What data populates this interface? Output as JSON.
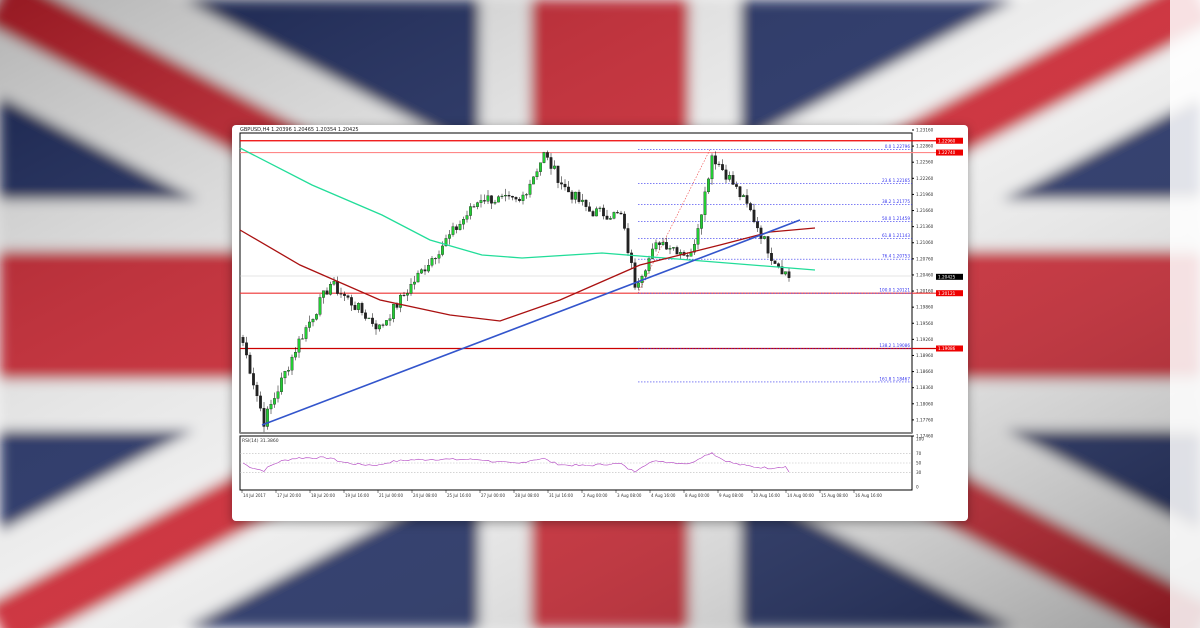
{
  "colors": {
    "flag_red": "#c8202f",
    "flag_blue": "#1e2a5e",
    "bull": "#22cc33",
    "bear": "#222222",
    "ma_fast": "#aa1111",
    "ma_slow": "#22dd99",
    "trend": "#3355cc",
    "rsi": "#b040c0",
    "fib": "#3333ee",
    "level": "#ee1111"
  },
  "chart_data": {
    "type": "candlestick",
    "symbol_header": "GBPUSD,H4  1.20396 1.20465 1.20354 1.20425",
    "price_axis": {
      "min": 1.1746,
      "max": 1.2316,
      "ticks": [
        "1.23160",
        "1.22860",
        "1.22560",
        "1.22260",
        "1.21960",
        "1.21660",
        "1.21360",
        "1.21060",
        "1.20760",
        "1.20460",
        "1.20160",
        "1.19860",
        "1.19560",
        "1.19260",
        "1.18960",
        "1.18660",
        "1.18360",
        "1.18060",
        "1.17760",
        "1.17460"
      ]
    },
    "current_price": "1.20425",
    "close_keypoints": [
      [
        0,
        1.192
      ],
      [
        6,
        1.1773
      ],
      [
        16,
        1.1923
      ],
      [
        25,
        1.203
      ],
      [
        39,
        1.1947
      ],
      [
        45,
        1.2
      ],
      [
        53,
        1.207
      ],
      [
        68,
        1.219
      ],
      [
        79,
        1.2181
      ],
      [
        86,
        1.227
      ],
      [
        92,
        1.2208
      ],
      [
        99,
        1.2165
      ],
      [
        108,
        1.2156
      ],
      [
        112,
        1.203
      ],
      [
        119,
        1.211
      ],
      [
        128,
        1.2082
      ],
      [
        132,
        1.2198
      ],
      [
        134,
        1.227
      ],
      [
        139,
        1.2226
      ],
      [
        145,
        1.2164
      ],
      [
        151,
        1.2082
      ],
      [
        156,
        1.2042
      ]
    ],
    "horizontal_levels": [
      {
        "price": 1.2296,
        "label": "1.22960"
      },
      {
        "price": 1.2274,
        "label": "1.22740"
      },
      {
        "price": 1.2012,
        "label": "1.20121"
      },
      {
        "price": 1.1909,
        "label": "1.19086"
      }
    ],
    "fibonacci": [
      {
        "label": "0.0 1.22796",
        "price": 1.22796
      },
      {
        "label": "23.6 1.22165",
        "price": 1.22165
      },
      {
        "label": "38.2 1.21775",
        "price": 1.21775
      },
      {
        "label": "50.0 1.21459",
        "price": 1.21459
      },
      {
        "label": "61.8 1.21143",
        "price": 1.21143
      },
      {
        "label": "76.4 1.20753",
        "price": 1.20753
      },
      {
        "label": "100.0 1.20121",
        "price": 1.20121
      },
      {
        "label": "138.2 1.19086",
        "price": 1.19086
      },
      {
        "label": "161.8 1.18467",
        "price": 1.18467
      }
    ],
    "rsi": {
      "label": "RSI(14) 31.3860",
      "levels": [
        70,
        50,
        30
      ],
      "ticks": [
        "100",
        "70",
        "50",
        "30",
        "0"
      ],
      "value": 31.386
    },
    "time_labels": [
      "14 Jul 2017",
      "17 Jul 20:00",
      "18 Jul 20:00",
      "19 Jul 16:00",
      "21 Jul 00:00",
      "24 Jul 08:00",
      "25 Jul 16:00",
      "27 Jul 00:00",
      "28 Jul 08:00",
      "31 Jul 16:00",
      "2 Aug 00:00",
      "3 Aug 08:00",
      "4 Aug 16:00",
      "8 Aug 00:00",
      "9 Aug 08:00",
      "10 Aug 16:00",
      "14 Aug 00:00",
      "15 Aug 08:00",
      "16 Aug 16:00"
    ]
  }
}
